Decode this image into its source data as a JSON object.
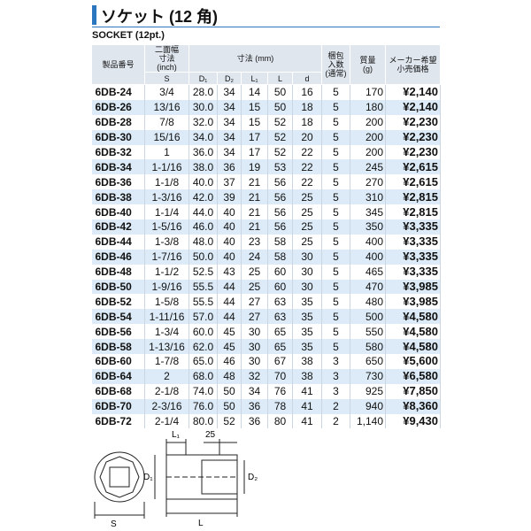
{
  "header": {
    "title": "ソケット (12 角)",
    "subtitle": "SOCKET (12pt.)"
  },
  "table": {
    "columns": [
      "製品番号",
      "二面幅\n寸法\n(inch)",
      "寸法 (mm)",
      "梱包\n入数\n(通常)",
      "質量\n(g)",
      "メーカー希望\n小売価格"
    ],
    "subcolumns": [
      "S",
      "D₁",
      "D₂",
      "L₁",
      "L",
      "d"
    ],
    "rows": [
      [
        "6DB-24",
        "3/4",
        "28.0",
        "34",
        "14",
        "50",
        "16",
        "5",
        "170",
        "¥2,140"
      ],
      [
        "6DB-26",
        "13/16",
        "30.0",
        "34",
        "15",
        "50",
        "18",
        "5",
        "180",
        "¥2,140"
      ],
      [
        "6DB-28",
        "7/8",
        "32.0",
        "34",
        "15",
        "52",
        "18",
        "5",
        "200",
        "¥2,230"
      ],
      [
        "6DB-30",
        "15/16",
        "34.0",
        "34",
        "17",
        "52",
        "20",
        "5",
        "200",
        "¥2,230"
      ],
      [
        "6DB-32",
        "1",
        "36.0",
        "34",
        "17",
        "52",
        "22",
        "5",
        "200",
        "¥2,230"
      ],
      [
        "6DB-34",
        "1-1/16",
        "38.0",
        "36",
        "19",
        "53",
        "22",
        "5",
        "245",
        "¥2,615"
      ],
      [
        "6DB-36",
        "1-1/8",
        "40.0",
        "37",
        "21",
        "56",
        "22",
        "5",
        "270",
        "¥2,615"
      ],
      [
        "6DB-38",
        "1-3/16",
        "42.0",
        "39",
        "21",
        "56",
        "25",
        "5",
        "310",
        "¥2,815"
      ],
      [
        "6DB-40",
        "1-1/4",
        "44.0",
        "40",
        "21",
        "56",
        "25",
        "5",
        "345",
        "¥2,815"
      ],
      [
        "6DB-42",
        "1-5/16",
        "46.0",
        "40",
        "21",
        "56",
        "25",
        "5",
        "350",
        "¥3,335"
      ],
      [
        "6DB-44",
        "1-3/8",
        "48.0",
        "40",
        "23",
        "58",
        "25",
        "5",
        "400",
        "¥3,335"
      ],
      [
        "6DB-46",
        "1-7/16",
        "50.0",
        "40",
        "24",
        "58",
        "30",
        "5",
        "400",
        "¥3,335"
      ],
      [
        "6DB-48",
        "1-1/2",
        "52.5",
        "43",
        "25",
        "60",
        "30",
        "5",
        "465",
        "¥3,335"
      ],
      [
        "6DB-50",
        "1-9/16",
        "55.5",
        "44",
        "25",
        "60",
        "30",
        "5",
        "470",
        "¥3,985"
      ],
      [
        "6DB-52",
        "1-5/8",
        "55.5",
        "44",
        "27",
        "63",
        "35",
        "5",
        "480",
        "¥3,985"
      ],
      [
        "6DB-54",
        "1-11/16",
        "57.0",
        "44",
        "27",
        "63",
        "35",
        "5",
        "500",
        "¥4,580"
      ],
      [
        "6DB-56",
        "1-3/4",
        "60.0",
        "45",
        "30",
        "65",
        "35",
        "5",
        "550",
        "¥4,580"
      ],
      [
        "6DB-58",
        "1-13/16",
        "62.0",
        "45",
        "30",
        "65",
        "35",
        "5",
        "580",
        "¥4,580"
      ],
      [
        "6DB-60",
        "1-7/8",
        "65.0",
        "46",
        "30",
        "67",
        "38",
        "3",
        "650",
        "¥5,600"
      ],
      [
        "6DB-64",
        "2",
        "68.0",
        "48",
        "32",
        "70",
        "38",
        "3",
        "730",
        "¥6,580"
      ],
      [
        "6DB-68",
        "2-1/8",
        "74.0",
        "50",
        "34",
        "76",
        "41",
        "3",
        "925",
        "¥7,850"
      ],
      [
        "6DB-70",
        "2-3/16",
        "76.0",
        "50",
        "36",
        "78",
        "41",
        "2",
        "940",
        "¥8,360"
      ],
      [
        "6DB-72",
        "2-1/4",
        "80.0",
        "52",
        "36",
        "80",
        "41",
        "2",
        "1,140",
        "¥9,430"
      ]
    ]
  },
  "diagram": {
    "labels": {
      "l1": "L₁",
      "width": "25",
      "d1": "D₁",
      "d2": "D₂",
      "s": "S",
      "l": "L"
    }
  }
}
